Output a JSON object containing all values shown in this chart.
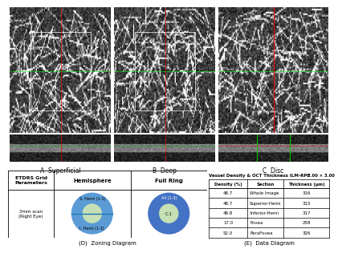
{
  "title": "",
  "panel_labels": [
    "A  Superficial",
    "B  Deep",
    "C  Disc"
  ],
  "panel_D_title": "(D)  Zoning Diagram",
  "panel_E_title": "(E)  Data Diagram",
  "table_main_title": "Vessel Density & OCT Thickness ILM-RPE",
  "table_size_label": "3.00 × 3.00",
  "table_headers": [
    "Density (%)",
    "Section",
    "Thickness (μm)"
  ],
  "table_rows": [
    [
      "48.7",
      "Whole Image",
      "316"
    ],
    [
      "48.7",
      "Superior-Hemi",
      "315"
    ],
    [
      "48.8",
      "Inferior-Hemi",
      "317"
    ],
    [
      "17.0",
      "Fovea",
      "258"
    ],
    [
      "52.0",
      "ParaFovea",
      "326"
    ]
  ],
  "grid_col1_label": "ETDRS Grid\nParameters",
  "grid_col2_label": "Hemisphere",
  "grid_col3_label": "Full Ring",
  "scan_label": "3mm scan\n(Right Eye)",
  "hemisphere_outer_color": "#5b9bd5",
  "hemisphere_inner_color": "#c5e0b4",
  "hemisphere_line_color": "#1f78b4",
  "fullring_outer_color": "#4472c4",
  "fullring_inner_color": "#c5e0b4",
  "hemi_label_top": "S. Hemi (1-3)",
  "hemi_label_bottom": "I. Hemi (1-3)",
  "ring_label_outer": "All (1-3)",
  "ring_label_inner": "C.1",
  "bg_color": "#ffffff",
  "grid_line_color": "#000000"
}
